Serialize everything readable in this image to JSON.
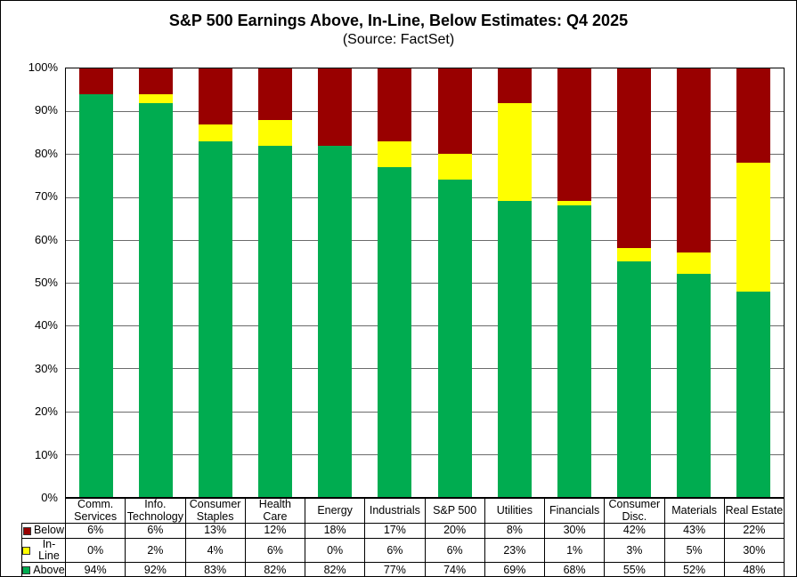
{
  "chart_data": {
    "type": "bar",
    "stacked": true,
    "title": "S&P 500 Earnings Above, In-Line, Below Estimates: Q4 2025",
    "subtitle": "(Source: FactSet)",
    "categories": [
      "Comm. Services",
      "Info. Technology",
      "Consumer Staples",
      "Health Care",
      "Energy",
      "Industrials",
      "S&P 500",
      "Utilities",
      "Financials",
      "Consumer Disc.",
      "Materials",
      "Real Estate"
    ],
    "series": [
      {
        "name": "Below",
        "color": "#990000",
        "values": [
          6,
          6,
          13,
          12,
          18,
          17,
          20,
          8,
          30,
          42,
          43,
          22
        ]
      },
      {
        "name": "In-Line",
        "color": "#FFFF00",
        "values": [
          0,
          2,
          4,
          6,
          0,
          6,
          6,
          23,
          1,
          3,
          5,
          30
        ]
      },
      {
        "name": "Above",
        "color": "#00AC50",
        "values": [
          94,
          92,
          83,
          82,
          82,
          77,
          74,
          69,
          68,
          55,
          52,
          48
        ]
      }
    ],
    "ylim": [
      0,
      100
    ],
    "yticks": [
      "0%",
      "10%",
      "20%",
      "30%",
      "40%",
      "50%",
      "60%",
      "70%",
      "80%",
      "90%",
      "100%"
    ],
    "grid": true,
    "legend_position": "table-left"
  },
  "table": {
    "rows": [
      {
        "label": "Below",
        "swatch": "#990000",
        "values": [
          "6%",
          "6%",
          "13%",
          "12%",
          "18%",
          "17%",
          "20%",
          "8%",
          "30%",
          "42%",
          "43%",
          "22%"
        ]
      },
      {
        "label": "In-Line",
        "swatch": "#FFFF00",
        "values": [
          "0%",
          "2%",
          "4%",
          "6%",
          "0%",
          "6%",
          "6%",
          "23%",
          "1%",
          "3%",
          "5%",
          "30%"
        ]
      },
      {
        "label": "Above",
        "swatch": "#00AC50",
        "values": [
          "94%",
          "92%",
          "83%",
          "82%",
          "82%",
          "77%",
          "74%",
          "69%",
          "68%",
          "55%",
          "52%",
          "48%"
        ]
      }
    ]
  }
}
